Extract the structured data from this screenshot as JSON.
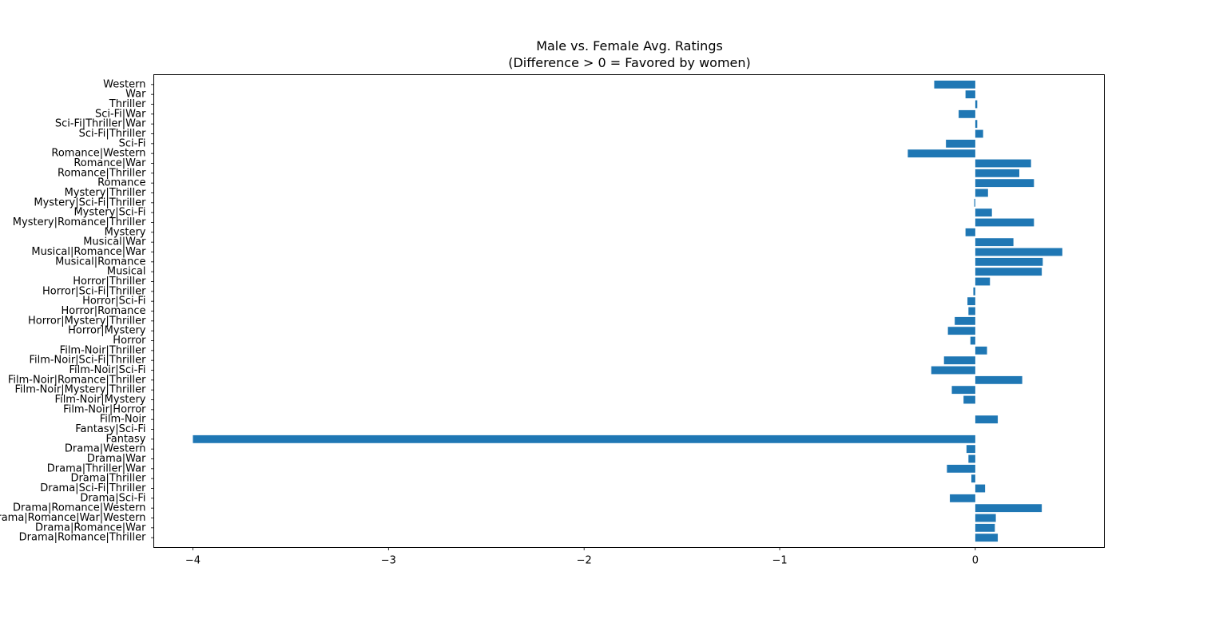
{
  "chart_data": {
    "type": "bar",
    "orientation": "horizontal",
    "title_line1": "Male vs. Female Avg. Ratings",
    "title_line2": "(Difference > 0 = Favored by women)",
    "xlabel": "",
    "ylabel": "",
    "xlim": [
      -4.2,
      0.66
    ],
    "xticks": [
      -4,
      -3,
      -2,
      -1,
      0
    ],
    "xtick_labels": [
      "−4",
      "−3",
      "−2",
      "−1",
      "0"
    ],
    "grid": false,
    "legend": "none",
    "bar_color": "#1f77b4",
    "categories": [
      "Drama|Romance|Thriller",
      "Drama|Romance|War",
      "Drama|Romance|War|Western",
      "Drama|Romance|Western",
      "Drama|Sci-Fi",
      "Drama|Sci-Fi|Thriller",
      "Drama|Thriller",
      "Drama|Thriller|War",
      "Drama|War",
      "Drama|Western",
      "Fantasy",
      "Fantasy|Sci-Fi",
      "Film-Noir",
      "Film-Noir|Horror",
      "Film-Noir|Mystery",
      "Film-Noir|Mystery|Thriller",
      "Film-Noir|Romance|Thriller",
      "Film-Noir|Sci-Fi",
      "Film-Noir|Sci-Fi|Thriller",
      "Film-Noir|Thriller",
      "Horror",
      "Horror|Mystery",
      "Horror|Mystery|Thriller",
      "Horror|Romance",
      "Horror|Sci-Fi",
      "Horror|Sci-Fi|Thriller",
      "Horror|Thriller",
      "Musical",
      "Musical|Romance",
      "Musical|Romance|War",
      "Musical|War",
      "Mystery",
      "Mystery|Romance|Thriller",
      "Mystery|Sci-Fi",
      "Mystery|Sci-Fi|Thriller",
      "Mystery|Thriller",
      "Romance",
      "Romance|Thriller",
      "Romance|War",
      "Romance|Western",
      "Sci-Fi",
      "Sci-Fi|Thriller",
      "Sci-Fi|Thriller|War",
      "Sci-Fi|War",
      "Thriller",
      "War",
      "Western"
    ],
    "values": [
      0.115,
      0.1,
      0.105,
      0.34,
      -0.13,
      0.05,
      -0.02,
      -0.145,
      -0.035,
      -0.045,
      -4.0,
      0.0,
      0.115,
      0.0,
      -0.06,
      -0.12,
      0.24,
      -0.225,
      -0.16,
      0.06,
      -0.025,
      -0.14,
      -0.105,
      -0.035,
      -0.04,
      -0.01,
      0.075,
      0.34,
      0.345,
      0.445,
      0.195,
      -0.05,
      0.3,
      0.085,
      -0.005,
      0.065,
      0.3,
      0.225,
      0.285,
      -0.345,
      -0.15,
      0.04,
      0.01,
      -0.085,
      0.01,
      -0.05,
      -0.21
    ]
  }
}
